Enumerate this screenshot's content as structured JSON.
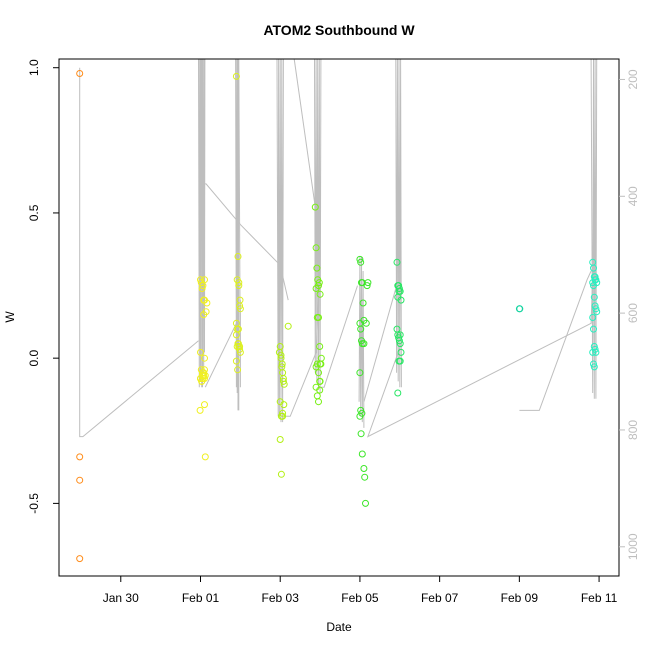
{
  "chart_data": {
    "type": "scatter",
    "title": "ATOM2 Southbound W",
    "xlabel": "Date",
    "ylabel": "W",
    "x_tick_labels": [
      "Jan 30",
      "Feb 01",
      "Feb 03",
      "Feb 05",
      "Feb 07",
      "Feb 09",
      "Feb 11"
    ],
    "x_ticks_days": [
      30.0,
      32.0,
      34.0,
      36.0,
      38.0,
      40.0,
      42.0
    ],
    "xlim_days": [
      28.45,
      42.5
    ],
    "ylim": [
      -0.75,
      1.03
    ],
    "y_ticks": [
      -0.5,
      0.0,
      0.5,
      1.0
    ],
    "y_tick_labels": [
      "-0.5",
      "0.0",
      "0.5",
      "1.0"
    ],
    "right_axis": {
      "color": "#bebebe",
      "ylim": [
        165,
        1050
      ],
      "ticks": [
        200,
        400,
        600,
        800,
        1000
      ],
      "tick_labels": [
        "200",
        "400",
        "600",
        "800",
        "1000"
      ],
      "reversed": true
    },
    "trace_color": "#bebebe",
    "point_groups": [
      {
        "color": "#ff8c1a",
        "x": [
          28.97,
          28.97,
          28.97,
          28.97
        ],
        "y": [
          0.98,
          -0.34,
          -0.42,
          -0.69
        ]
      },
      {
        "color": "#f0f020",
        "x": [
          32.0,
          32.02,
          32.04,
          32.06,
          32.08,
          32.1,
          32.0,
          32.02,
          32.05,
          32.08,
          32.1,
          32.12,
          32.0,
          32.03,
          32.06,
          32.08,
          32.1,
          32.0,
          32.03,
          32.05,
          32.08,
          32.1,
          31.99,
          32.1,
          32.12,
          32.16,
          32.1,
          32.14
        ],
        "y": [
          0.27,
          0.26,
          0.24,
          0.25,
          0.2,
          0.27,
          0.02,
          -0.04,
          -0.05,
          -0.06,
          -0.07,
          -0.06,
          -0.07,
          -0.08,
          -0.07,
          -0.05,
          0.0,
          -0.07,
          -0.08,
          -0.06,
          0.15,
          0.2,
          -0.18,
          -0.16,
          -0.34,
          0.19,
          -0.04,
          0.16
        ]
      },
      {
        "color": "#dcf020",
        "x": [
          32.9,
          32.92,
          32.94,
          32.96,
          32.98,
          33.0,
          32.9,
          32.92,
          32.94,
          32.96,
          32.98,
          33.0,
          32.9,
          32.93,
          32.96,
          32.99,
          32.92,
          32.95,
          32.98,
          32.9,
          32.95
        ],
        "y": [
          0.97,
          0.27,
          0.35,
          0.25,
          0.18,
          0.17,
          0.12,
          0.1,
          0.05,
          0.04,
          0.04,
          0.02,
          -0.01,
          -0.04,
          0.26,
          0.2,
          0.04,
          0.05,
          0.03,
          0.08,
          0.1
        ]
      },
      {
        "color": "#b4f014",
        "x": [
          33.98,
          34.0,
          34.02,
          34.04,
          34.06,
          34.08,
          34.1,
          34.0,
          34.03,
          34.06,
          34.09,
          34.0,
          34.03,
          34.06,
          34.02,
          34.05,
          34.08,
          34.2
        ],
        "y": [
          0.02,
          0.04,
          0.0,
          -0.03,
          -0.05,
          -0.07,
          -0.09,
          -0.15,
          -0.2,
          -0.19,
          -0.16,
          -0.28,
          -0.4,
          -0.2,
          0.01,
          -0.02,
          -0.08,
          0.11
        ]
      },
      {
        "color": "#78f014",
        "x": [
          34.88,
          34.9,
          34.92,
          34.94,
          34.96,
          34.98,
          35.0,
          34.9,
          34.93,
          34.96,
          34.99,
          35.0,
          35.02,
          34.9,
          34.93,
          34.96,
          34.99,
          34.9,
          34.93,
          34.96,
          34.99,
          35.0,
          35.03
        ],
        "y": [
          0.52,
          0.38,
          0.31,
          0.27,
          0.25,
          0.26,
          0.22,
          0.24,
          0.14,
          0.14,
          0.04,
          -0.02,
          -0.02,
          -0.03,
          -0.02,
          -0.05,
          -0.08,
          -0.1,
          -0.13,
          -0.15,
          -0.11,
          -0.08,
          0.0
        ]
      },
      {
        "color": "#3ce628",
        "x": [
          36.0,
          36.02,
          36.04,
          36.06,
          36.08,
          36.1,
          36.0,
          36.02,
          36.04,
          36.06,
          36.1,
          36.0,
          36.02,
          36.05,
          36.0,
          36.03,
          36.06,
          36.1,
          36.12,
          36.14,
          36.16,
          36.18,
          36.2
        ],
        "y": [
          0.34,
          0.33,
          0.26,
          0.26,
          0.19,
          0.13,
          0.12,
          0.1,
          0.06,
          0.05,
          0.05,
          -0.05,
          -0.18,
          -0.19,
          -0.2,
          -0.26,
          -0.33,
          -0.38,
          -0.41,
          -0.5,
          0.12,
          0.25,
          0.26
        ]
      },
      {
        "color": "#28e664",
        "x": [
          36.93,
          36.95,
          36.97,
          36.99,
          37.01,
          37.03,
          36.93,
          36.95,
          36.97,
          36.99,
          37.01,
          37.03,
          36.95,
          36.98,
          37.01,
          36.95,
          36.98,
          37.01
        ],
        "y": [
          0.33,
          0.25,
          0.25,
          0.24,
          0.23,
          0.2,
          0.1,
          0.08,
          0.07,
          0.06,
          0.05,
          0.02,
          0.21,
          0.23,
          -0.01,
          -0.12,
          -0.01,
          0.08
        ]
      },
      {
        "color": "#14d4a0",
        "x": [
          40.0,
          40.01
        ],
        "y": [
          0.17,
          0.17
        ]
      },
      {
        "color": "#28f0c0",
        "x": [
          41.84,
          41.86,
          41.88,
          41.9,
          41.92,
          41.94,
          41.84,
          41.86,
          41.88,
          41.9,
          41.92,
          41.94,
          41.84,
          41.86,
          41.88,
          41.9,
          41.92,
          41.84,
          41.86,
          41.88,
          41.9
        ],
        "y": [
          0.33,
          0.31,
          0.28,
          0.27,
          0.27,
          0.26,
          0.26,
          0.25,
          0.21,
          0.18,
          0.17,
          0.16,
          0.14,
          0.1,
          0.04,
          0.03,
          0.02,
          0.02,
          -0.02,
          -0.03,
          0.28
        ]
      }
    ],
    "traces": [
      {
        "x": [
          28.97,
          28.97,
          29.05,
          31.95
        ],
        "y": [
          1.0,
          -0.27,
          -0.27,
          0.06
        ]
      },
      {
        "x": [
          31.95,
          31.97,
          31.98,
          32.0,
          32.0
        ],
        "y": [
          1.03,
          -0.1,
          1.03,
          -0.08,
          1.03
        ]
      },
      {
        "x": [
          32.02,
          32.03,
          32.04,
          32.05,
          32.06
        ],
        "y": [
          1.03,
          -0.1,
          1.03,
          -0.1,
          1.03
        ]
      },
      {
        "x": [
          32.06,
          32.08,
          32.09,
          32.1,
          32.11
        ],
        "y": [
          1.03,
          -0.05,
          1.03,
          0.02,
          1.03
        ]
      },
      {
        "x": [
          32.1,
          32.14,
          33.0,
          34.0,
          34.2
        ],
        "y": [
          0.6,
          0.6,
          0.46,
          0.32,
          0.2
        ]
      },
      {
        "x": [
          32.12,
          32.9
        ],
        "y": [
          -0.1,
          0.12
        ]
      },
      {
        "x": [
          32.88,
          32.9,
          32.91,
          32.92,
          32.93,
          32.94,
          32.95,
          32.96
        ],
        "y": [
          1.03,
          -0.1,
          1.03,
          -0.12,
          1.03,
          -0.18,
          1.03,
          -0.18
        ]
      },
      {
        "x": [
          32.96,
          33.0,
          33.0
        ],
        "y": [
          1.03,
          -0.1,
          0.2
        ]
      },
      {
        "x": [
          33.92,
          33.95,
          33.96,
          33.98,
          34.0,
          34.02,
          34.04,
          34.06,
          34.08
        ],
        "y": [
          1.03,
          -0.2,
          1.03,
          -0.2,
          1.03,
          -0.22,
          1.03,
          -0.22,
          1.03
        ]
      },
      {
        "x": [
          34.1,
          34.25,
          34.9,
          35.0
        ],
        "y": [
          -0.2,
          -0.2,
          0.02,
          0.34
        ]
      },
      {
        "x": [
          34.35,
          34.9
        ],
        "y": [
          1.03,
          0.5
        ]
      },
      {
        "x": [
          34.86,
          34.88,
          34.9,
          34.92,
          34.94,
          34.96,
          34.98,
          35.0,
          35.02
        ],
        "y": [
          1.03,
          -0.05,
          1.03,
          -0.08,
          1.03,
          -0.1,
          1.03,
          -0.12,
          1.03
        ]
      },
      {
        "x": [
          35.02,
          35.1,
          35.94
        ],
        "y": [
          -0.1,
          -0.1,
          0.25
        ]
      },
      {
        "x": [
          35.98,
          36.0,
          36.02,
          36.04,
          36.06,
          36.08,
          36.1
        ],
        "y": [
          -0.15,
          0.35,
          -0.2,
          0.35,
          -0.22,
          0.3,
          -0.24
        ]
      },
      {
        "x": [
          36.1,
          36.92
        ],
        "y": [
          -0.15,
          0.25
        ]
      },
      {
        "x": [
          36.9,
          36.92,
          36.94,
          36.96,
          36.98,
          37.0,
          37.02,
          37.04
        ],
        "y": [
          1.03,
          -0.05,
          1.03,
          -0.08,
          1.03,
          -0.1,
          1.03,
          -0.1
        ]
      },
      {
        "x": [
          37.04,
          36.2,
          41.8,
          41.85
        ],
        "y": [
          0.05,
          -0.27,
          0.12,
          0.33
        ]
      },
      {
        "x": [
          40.0,
          40.5,
          41.7,
          41.8
        ],
        "y": [
          -0.18,
          -0.18,
          0.27,
          0.3
        ]
      },
      {
        "x": [
          41.8,
          41.84,
          41.86,
          41.88,
          41.9,
          41.92,
          41.94
        ],
        "y": [
          1.03,
          -0.12,
          1.03,
          -0.14,
          1.03,
          -0.14,
          1.03
        ]
      }
    ]
  }
}
